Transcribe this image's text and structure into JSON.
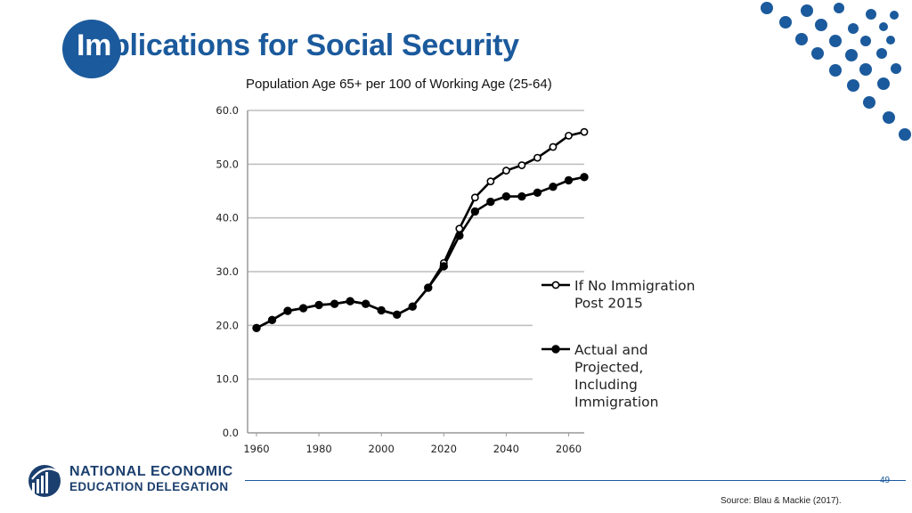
{
  "slide": {
    "title_highlight": "Im",
    "title_rest": "plications for Social Security",
    "page_number": "49",
    "source": "Source: Blau & Mackie (2017).",
    "brand_line1": "NATIONAL ECONOMIC",
    "brand_line2": "EDUCATION DELEGATION",
    "colors": {
      "brand_blue": "#1b5a9c",
      "brand_navy": "#1b3f6e"
    }
  },
  "chart_data": {
    "type": "line",
    "title": "Population Age 65+ per 100 of Working Age (25-64)",
    "xlabel": "",
    "ylabel": "",
    "ylim": [
      0,
      60
    ],
    "y_ticks": [
      "0.0",
      "10.0",
      "20.0",
      "30.0",
      "40.0",
      "50.0",
      "60.0"
    ],
    "x_ticks": [
      "1960",
      "1980",
      "2000",
      "2020",
      "2040",
      "2060"
    ],
    "x": [
      1960,
      1965,
      1970,
      1975,
      1980,
      1985,
      1990,
      1995,
      2000,
      2005,
      2010,
      2015,
      2020,
      2025,
      2030,
      2035,
      2040,
      2045,
      2050,
      2055,
      2060,
      2065
    ],
    "series": [
      {
        "name": "If No Immigration Post 2015",
        "legend_lines": [
          "If No Immigration",
          "Post 2015"
        ],
        "marker": "open",
        "values": [
          19.5,
          21.0,
          22.7,
          23.2,
          23.8,
          24.0,
          24.5,
          24.0,
          22.8,
          22.0,
          23.5,
          27.0,
          31.6,
          38.0,
          43.8,
          46.8,
          48.8,
          49.8,
          51.2,
          53.2,
          55.3,
          56.0
        ]
      },
      {
        "name": "Actual and Projected, Including Immigration",
        "legend_lines": [
          "Actual and",
          "Projected,",
          "Including",
          "Immigration"
        ],
        "marker": "filled",
        "values": [
          19.5,
          21.0,
          22.7,
          23.2,
          23.8,
          24.0,
          24.5,
          24.0,
          22.8,
          22.0,
          23.5,
          27.0,
          31.0,
          36.7,
          41.2,
          43.0,
          44.0,
          44.0,
          44.7,
          45.8,
          47.0,
          47.6
        ]
      }
    ],
    "legend": "right"
  }
}
